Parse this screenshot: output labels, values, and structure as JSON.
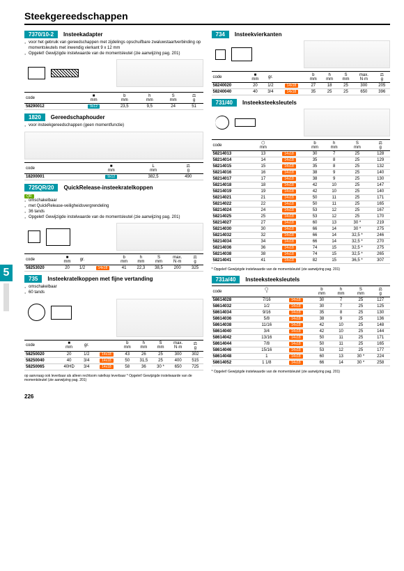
{
  "pageTitle": "Steekgereedschappen",
  "pageNumber": "226",
  "sideTab": "5",
  "s7370": {
    "num": "7370/10-2",
    "title": "Insteekadapter",
    "notes": [
      "voor het gebruik van gereedschappen met zijdelings opschuifbare zwaluwstaartverbinding op momentsleutels met inwendig vierkant 9 x 12 mm",
      "Opgelet! Gewijzigde instelwaarde van de momentsleutel (zie aanwijzing pag. 201)"
    ],
    "th": [
      "code",
      "■\nmm",
      "b\nmm",
      "h\nmm",
      "S\nmm",
      "⚖\ng"
    ],
    "rows": [
      [
        "58290012",
        "9x12",
        "23,5",
        "9,5",
        "24",
        "51"
      ]
    ]
  },
  "s1820": {
    "num": "1820",
    "title": "Gereedschaphouder",
    "notes": [
      "voor insteekgereedschappen (geen momentfunctie)"
    ],
    "th": [
      "code",
      "■\nmm",
      "L\nmm",
      "⚖\ng"
    ],
    "rows": [
      [
        "18200001",
        "9x12",
        "382,5",
        "490"
      ]
    ]
  },
  "s725": {
    "num": "725QR/20",
    "title": "QuickRelease-insteekratelkoppen",
    "notes": [
      "omschakelbaar",
      "met QuickRelease-veiligheidsvergrendeling",
      "36 tands",
      "Opgelet! Gewijzigde instelwaarde van de momentsleutel (zie aanwijzing pag. 201)"
    ],
    "th": [
      "code",
      "■\nmm",
      "gr.",
      "",
      "b\nmm",
      "h\nmm",
      "S\nmm",
      "max.\nN·m",
      "⚖\ng"
    ],
    "rows": [
      [
        "58253020",
        "20",
        "1/2",
        "14x18",
        "41",
        "22,3",
        "38,5",
        "200",
        "325"
      ]
    ]
  },
  "s735": {
    "num": "735",
    "title": "Insteekratelkoppen met fijne vertanding",
    "notes": [
      "omschakelbaar",
      "60 tands"
    ],
    "th": [
      "code",
      "■\nmm",
      "gr.",
      "",
      "b\nmm",
      "h\nmm",
      "S\nmm",
      "max.\nN·m",
      "⚖\ng"
    ],
    "rows": [
      [
        "58250020",
        "20",
        "1/2",
        "14x18",
        "43",
        "26",
        "25",
        "300",
        "302"
      ],
      [
        "58250040",
        "40",
        "3/4",
        "14x18",
        "50",
        "31,5",
        "25",
        "400",
        "515"
      ],
      [
        "58250065",
        "40HD",
        "3/4",
        "14x18",
        "58",
        "36",
        "30 *",
        "650",
        "725"
      ]
    ],
    "foot": "op aanvraag ook leverbaar als alleen rechtsom ratelkop leverbaar\n* Opgelet! Gewijzigde instelwaarde van de momentsleutel (zie aanwijzing pag. 201)"
  },
  "s734": {
    "num": "734",
    "title": "Insteekvierkanten",
    "th": [
      "code",
      "■\nmm",
      "gr.",
      "",
      "b\nmm",
      "h\nmm",
      "S\nmm",
      "max.\nN·m",
      "⚖\ng"
    ],
    "rows": [
      [
        "58240020",
        "20",
        "1/2",
        "14x18",
        "27",
        "18",
        "25",
        "300",
        "205"
      ],
      [
        "58240040",
        "40",
        "3/4",
        "14x18",
        "35",
        "25",
        "25",
        "650",
        "396"
      ]
    ]
  },
  "s73140": {
    "num": "731/40",
    "title": "Insteeksteeksleutels",
    "th": [
      "code",
      "⬡\nmm",
      "",
      "b\nmm",
      "h\nmm",
      "S\nmm",
      "⚖\ng"
    ],
    "rows": [
      [
        "58214013",
        "13",
        "14x18",
        "30",
        "7",
        "25",
        "128"
      ],
      [
        "58214014",
        "14",
        "14x18",
        "35",
        "8",
        "25",
        "129"
      ],
      [
        "58214015",
        "15",
        "14x18",
        "35",
        "8",
        "25",
        "132"
      ],
      [
        "58214016",
        "16",
        "14x18",
        "38",
        "9",
        "25",
        "140"
      ],
      [
        "58214017",
        "17",
        "14x18",
        "38",
        "9",
        "25",
        "130"
      ],
      [
        "58214018",
        "18",
        "14x18",
        "42",
        "10",
        "25",
        "147"
      ],
      [
        "58214019",
        "19",
        "14x18",
        "42",
        "10",
        "25",
        "140"
      ],
      [
        "58214021",
        "21",
        "14x18",
        "50",
        "11",
        "25",
        "171"
      ],
      [
        "58214022",
        "22",
        "14x18",
        "50",
        "11",
        "25",
        "165"
      ],
      [
        "58214024",
        "24",
        "14x18",
        "53",
        "12",
        "25",
        "167"
      ],
      [
        "58214025",
        "25",
        "14x18",
        "53",
        "12",
        "25",
        "170"
      ],
      [
        "58214027",
        "27",
        "14x18",
        "60",
        "13",
        "30 *",
        "219"
      ],
      [
        "58214030",
        "30",
        "14x18",
        "66",
        "14",
        "30 *",
        "275"
      ],
      [
        "58214032",
        "32",
        "14x18",
        "66",
        "14",
        "32,5 *",
        "246"
      ],
      [
        "58214034",
        "34",
        "14x18",
        "66",
        "14",
        "32,5 *",
        "270"
      ],
      [
        "58214036",
        "36",
        "14x18",
        "74",
        "15",
        "32,5 *",
        "275"
      ],
      [
        "58214038",
        "38",
        "14x18",
        "74",
        "15",
        "32,5 *",
        "265"
      ],
      [
        "58214041",
        "41",
        "14x18",
        "82",
        "15",
        "36,5 *",
        "307"
      ]
    ],
    "foot": "* Opgelet! Gewijzigde instelwaarde van de momentsleutel (zie aanwijzing pag. 201)"
  },
  "s731a": {
    "num": "731a/40",
    "title": "Insteeksteeksleutels",
    "th": [
      "code",
      "⬡\n\"",
      "",
      "b\nmm",
      "h\nmm",
      "S\nmm",
      "⚖\ng"
    ],
    "rows": [
      [
        "58614028",
        "7/16",
        "14x18",
        "30",
        "7",
        "25",
        "127"
      ],
      [
        "58614032",
        "1/2",
        "14x18",
        "30",
        "7",
        "25",
        "125"
      ],
      [
        "58614034",
        "9/16",
        "14x18",
        "35",
        "8",
        "25",
        "130"
      ],
      [
        "58614036",
        "5/8",
        "14x18",
        "38",
        "9",
        "25",
        "136"
      ],
      [
        "58614038",
        "11/16",
        "14x18",
        "42",
        "10",
        "25",
        "148"
      ],
      [
        "58614040",
        "3/4",
        "14x18",
        "42",
        "10",
        "25",
        "144"
      ],
      [
        "58614042",
        "13/16",
        "14x18",
        "50",
        "11",
        "25",
        "171"
      ],
      [
        "58614044",
        "7/8",
        "14x18",
        "50",
        "11",
        "25",
        "165"
      ],
      [
        "58614046",
        "15/16",
        "14x18",
        "53",
        "12",
        "25",
        "177"
      ],
      [
        "58614048",
        "1",
        "14x18",
        "60",
        "13",
        "30 *",
        "224"
      ],
      [
        "58614052",
        "1 1/8",
        "14x18",
        "66",
        "14",
        "30 *",
        "258"
      ]
    ],
    "foot": "* Opgelet! Gewijzigde instelwaarde van de momentsleutel (zie aanwijzing pag. 201)"
  }
}
